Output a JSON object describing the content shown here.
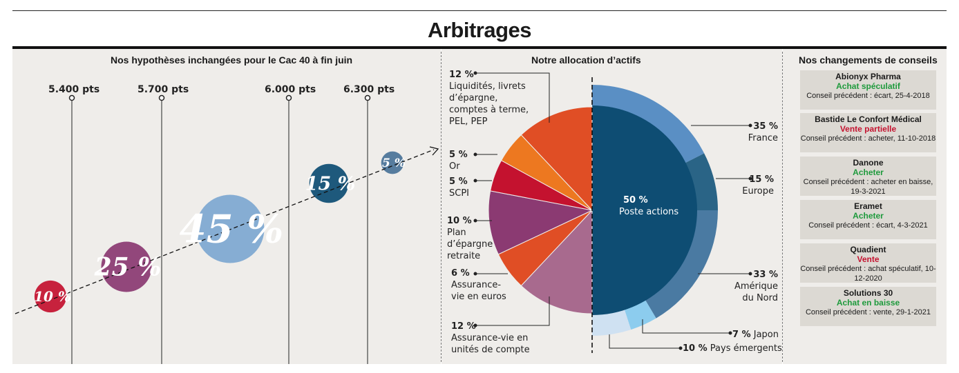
{
  "title": "Arbitrages",
  "left_panel": {
    "title": "Nos hypothèses inchangées pour le Cac 40 à fin juin",
    "levels": [
      "5.400 pts",
      "5.700 pts",
      "6.000 pts",
      "6.300 pts"
    ]
  },
  "middle_panel": {
    "title": "Notre allocation d’actifs",
    "center_label": {
      "value": "50 %",
      "name": "Poste actions"
    },
    "left_labels": [
      {
        "value": "12 %",
        "name": "Liquidités, livrets d’épargne, comptes à terme, PEL, PEP"
      },
      {
        "value": "5 %",
        "name": "Or"
      },
      {
        "value": "5 %",
        "name": "SCPI"
      },
      {
        "value": "10 %",
        "name": "Plan d’épargne retraite"
      },
      {
        "value": "6 %",
        "name": "Assurance-vie en euros"
      },
      {
        "value": "12 %",
        "name": "Assurance-vie en unités de compte"
      }
    ],
    "right_labels": [
      {
        "value": "35 %",
        "name": "France"
      },
      {
        "value": "15 %",
        "name": "Europe"
      },
      {
        "value": "33 %",
        "name": "Amérique du Nord"
      },
      {
        "value": "7 %",
        "name": "Japon"
      },
      {
        "value": "10 %",
        "name": "Pays émergents"
      }
    ]
  },
  "right_panel": {
    "title": "Nos changements de conseils",
    "cards": [
      {
        "name": "Abionyx Pharma",
        "advice": "Achat spéculatif",
        "advice_color": "#1e9a3c",
        "previous": "Conseil précédent : écart, 25-4-2018"
      },
      {
        "name": "Bastide Le Confort Médical",
        "advice": "Vente partielle",
        "advice_color": "#c4122f",
        "previous": "Conseil précédent : acheter, 11-10-2018"
      },
      {
        "name": "Danone",
        "advice": "Acheter",
        "advice_color": "#1e9a3c",
        "previous": "Conseil précédent : acheter en baisse, 19-3-2021"
      },
      {
        "name": "Eramet",
        "advice": "Acheter",
        "advice_color": "#1e9a3c",
        "previous": "Conseil précédent : écart, 4-3-2021"
      },
      {
        "name": "Quadient",
        "advice": "Vente",
        "advice_color": "#c4122f",
        "previous": "Conseil précédent : achat spéculatif, 10-12-2020"
      },
      {
        "name": "Solutions 30",
        "advice": "Achat en baisse",
        "advice_color": "#1e9a3c",
        "previous": "Conseil précédent : vente, 29-1-2021"
      }
    ]
  },
  "chart_data": [
    {
      "type": "bubble",
      "title": "Nos hypothèses inchangées pour le Cac 40 à fin juin",
      "categories": [
        "5.400 pts",
        "5.700 pts",
        "6.000 pts",
        "6.300 pts"
      ],
      "series": [
        {
          "label": "10 %",
          "value": 10,
          "color": "#c4122f"
        },
        {
          "label": "25 %",
          "value": 25,
          "color": "#8b3a72"
        },
        {
          "label": "45 %",
          "value": 45,
          "color": "#7ea8d1"
        },
        {
          "label": "15 %",
          "value": 15,
          "color": "#0e4d73"
        },
        {
          "label": "5 %",
          "value": 5,
          "color": "#4a7398"
        }
      ]
    },
    {
      "type": "pie",
      "title": "Notre allocation d’actifs",
      "slices": [
        {
          "label": "Poste actions",
          "value": 50,
          "color": "#0e4d73"
        },
        {
          "label": "Assurance-vie en unités de compte",
          "value": 12,
          "color": "#a86a8e"
        },
        {
          "label": "Assurance-vie en euros",
          "value": 6,
          "color": "#e04e25"
        },
        {
          "label": "Plan d’épargne retraite",
          "value": 10,
          "color": "#8b3a72"
        },
        {
          "label": "SCPI",
          "value": 5,
          "color": "#c4122f"
        },
        {
          "label": "Or",
          "value": 5,
          "color": "#ed7820"
        },
        {
          "label": "Liquidités, livrets d’épargne, comptes à terme, PEL, PEP",
          "value": 12,
          "color": "#e04e25"
        }
      ],
      "equity_breakdown": [
        {
          "label": "France",
          "value": 35,
          "color": "#5a8fc4"
        },
        {
          "label": "Europe",
          "value": 15,
          "color": "#2a6486"
        },
        {
          "label": "Amérique du Nord",
          "value": 33,
          "color": "#4a7aa2"
        },
        {
          "label": "Japon",
          "value": 7,
          "color": "#8cccee"
        },
        {
          "label": "Pays émergents",
          "value": 10,
          "color": "#cfe1f2"
        }
      ]
    }
  ]
}
